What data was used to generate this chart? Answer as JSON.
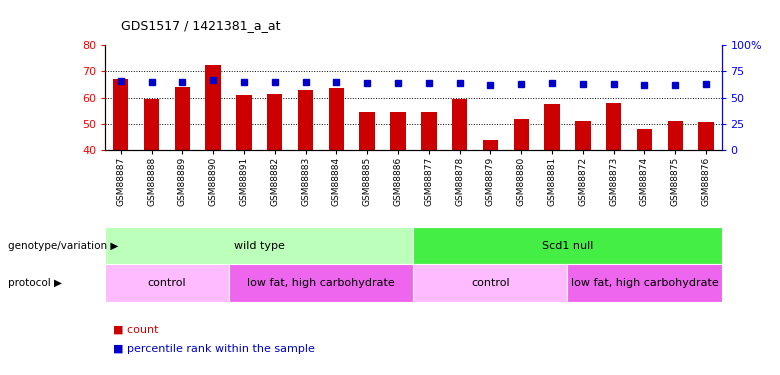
{
  "title": "GDS1517 / 1421381_a_at",
  "categories": [
    "GSM88887",
    "GSM88888",
    "GSM88889",
    "GSM88890",
    "GSM88891",
    "GSM88882",
    "GSM88883",
    "GSM88884",
    "GSM88885",
    "GSM88886",
    "GSM88877",
    "GSM88878",
    "GSM88879",
    "GSM88880",
    "GSM88881",
    "GSM88872",
    "GSM88873",
    "GSM88874",
    "GSM88875",
    "GSM88876"
  ],
  "bar_values": [
    67.0,
    59.5,
    64.0,
    72.5,
    61.0,
    61.5,
    63.0,
    63.5,
    54.5,
    54.5,
    54.5,
    59.5,
    44.0,
    52.0,
    57.5,
    51.0,
    58.0,
    48.0,
    51.0,
    50.5
  ],
  "dot_values": [
    66,
    65,
    65,
    67,
    65,
    65,
    65,
    65,
    64,
    64,
    64,
    64,
    62,
    63,
    64,
    63,
    63,
    62,
    62,
    63
  ],
  "ylim_left": [
    40,
    80
  ],
  "ylim_right": [
    0,
    100
  ],
  "yticks_left": [
    40,
    50,
    60,
    70,
    80
  ],
  "yticks_right": [
    0,
    25,
    50,
    75,
    100
  ],
  "bar_color": "#cc0000",
  "dot_color": "#0000cc",
  "grid_dotted_values": [
    50,
    60,
    70
  ],
  "genotype_labels": [
    {
      "text": "wild type",
      "start": 0,
      "end": 9,
      "color": "#bbffbb"
    },
    {
      "text": "Scd1 null",
      "start": 10,
      "end": 19,
      "color": "#44ee44"
    }
  ],
  "protocol_labels": [
    {
      "text": "control",
      "start": 0,
      "end": 3,
      "color": "#ffbbff"
    },
    {
      "text": "low fat, high carbohydrate",
      "start": 4,
      "end": 9,
      "color": "#ee66ee"
    },
    {
      "text": "control",
      "start": 10,
      "end": 14,
      "color": "#ffbbff"
    },
    {
      "text": "low fat, high carbohydrate",
      "start": 15,
      "end": 19,
      "color": "#ee66ee"
    }
  ],
  "legend_count_color": "#cc0000",
  "legend_dot_color": "#0000cc",
  "bar_width": 0.5,
  "fig_width": 7.8,
  "fig_height": 3.75,
  "dpi": 100
}
